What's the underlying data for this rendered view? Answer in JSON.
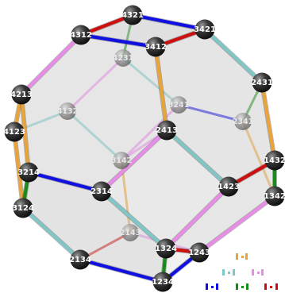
{
  "colors": {
    "orange": "#e8a33a",
    "cyan": "#7fc6c6",
    "pink": "#e88ce8",
    "blue": "#1010e0",
    "green": "#1a8a1a",
    "red": "#cc1010",
    "face": "#d8d8d8",
    "node": "#262626",
    "node_back": "#8a8a8a"
  },
  "nodes": [
    {
      "id": "4321",
      "label": "4321",
      "layer": "front"
    },
    {
      "id": "4312",
      "label": "4312",
      "layer": "front"
    },
    {
      "id": "3421",
      "label": "3421",
      "layer": "front"
    },
    {
      "id": "3412",
      "label": "3412",
      "layer": "front"
    },
    {
      "id": "4231",
      "label": "4231",
      "layer": "back"
    },
    {
      "id": "2431",
      "label": "2431",
      "layer": "front"
    },
    {
      "id": "4213",
      "label": "4213",
      "layer": "front"
    },
    {
      "id": "3241",
      "label": "3241",
      "layer": "back"
    },
    {
      "id": "4132",
      "label": "4132",
      "layer": "back"
    },
    {
      "id": "2341",
      "label": "2341",
      "layer": "back"
    },
    {
      "id": "4123",
      "label": "4123",
      "layer": "front"
    },
    {
      "id": "2413",
      "label": "2413",
      "layer": "front"
    },
    {
      "id": "1432",
      "label": "1432",
      "layer": "front"
    },
    {
      "id": "3142",
      "label": "3142",
      "layer": "back"
    },
    {
      "id": "3214",
      "label": "3214",
      "layer": "front"
    },
    {
      "id": "2314",
      "label": "2314",
      "layer": "front"
    },
    {
      "id": "1423",
      "label": "1423",
      "layer": "front"
    },
    {
      "id": "1342",
      "label": "1342",
      "layer": "front"
    },
    {
      "id": "3124",
      "label": "3124",
      "layer": "front"
    },
    {
      "id": "2143",
      "label": "2143",
      "layer": "back"
    },
    {
      "id": "1324",
      "label": "1324",
      "layer": "front"
    },
    {
      "id": "1243",
      "label": "1243",
      "layer": "front"
    },
    {
      "id": "2134",
      "label": "2134",
      "layer": "front"
    },
    {
      "id": "1234",
      "label": "1234",
      "layer": "front"
    }
  ],
  "edges": [
    {
      "a": "4312",
      "b": "4321",
      "color": "red"
    },
    {
      "a": "4321",
      "b": "3421",
      "color": "blue"
    },
    {
      "a": "3421",
      "b": "3412",
      "color": "red"
    },
    {
      "a": "3412",
      "b": "4312",
      "color": "blue"
    },
    {
      "a": "4321",
      "b": "4231",
      "color": "green"
    },
    {
      "a": "3421",
      "b": "2431",
      "color": "cyan"
    },
    {
      "a": "3412",
      "b": "2413",
      "color": "orange"
    },
    {
      "a": "4312",
      "b": "4213",
      "color": "pink"
    },
    {
      "a": "4213",
      "b": "4123",
      "color": "orange"
    },
    {
      "a": "4213",
      "b": "3214",
      "color": "orange"
    },
    {
      "a": "4123",
      "b": "3124",
      "color": "orange"
    },
    {
      "a": "3214",
      "b": "3124",
      "color": "green"
    },
    {
      "a": "3214",
      "b": "2314",
      "color": "blue"
    },
    {
      "a": "3124",
      "b": "2134",
      "color": "cyan"
    },
    {
      "a": "2314",
      "b": "2413",
      "color": "pink"
    },
    {
      "a": "2314",
      "b": "1324",
      "color": "cyan"
    },
    {
      "a": "2413",
      "b": "1423",
      "color": "cyan"
    },
    {
      "a": "1423",
      "b": "1432",
      "color": "red"
    },
    {
      "a": "1423",
      "b": "1324",
      "color": "pink"
    },
    {
      "a": "1432",
      "b": "1342",
      "color": "green"
    },
    {
      "a": "1432",
      "b": "2431",
      "color": "orange"
    },
    {
      "a": "2431",
      "b": "2341",
      "color": "green"
    },
    {
      "a": "1342",
      "b": "1243",
      "color": "pink"
    },
    {
      "a": "1324",
      "b": "1243",
      "color": "red"
    },
    {
      "a": "1324",
      "b": "1234",
      "color": "green"
    },
    {
      "a": "1243",
      "b": "1234",
      "color": "blue"
    },
    {
      "a": "2134",
      "b": "1234",
      "color": "blue"
    },
    {
      "a": "2134",
      "b": "2143",
      "color": "red"
    },
    {
      "a": "2143",
      "b": "1243",
      "color": "pink"
    },
    {
      "a": "4231",
      "b": "4132",
      "color": "pink"
    },
    {
      "a": "4231",
      "b": "3241",
      "color": "cyan"
    },
    {
      "a": "4132",
      "b": "4123",
      "color": "cyan"
    },
    {
      "a": "4132",
      "b": "3142",
      "color": "cyan"
    },
    {
      "a": "3241",
      "b": "2341",
      "color": "blue"
    },
    {
      "a": "3241",
      "b": "3142",
      "color": "pink"
    },
    {
      "a": "3142",
      "b": "2143",
      "color": "orange"
    },
    {
      "a": "2341",
      "b": "1342",
      "color": "orange"
    },
    {
      "a": "2413",
      "b": "3142",
      "color": "pink"
    }
  ],
  "legend": [
    {
      "color": "orange",
      "name": "orange-legend"
    },
    {
      "color": "cyan",
      "name": "cyan-legend"
    },
    {
      "color": "pink",
      "name": "pink-legend"
    },
    {
      "color": "blue",
      "name": "blue-legend"
    },
    {
      "color": "green",
      "name": "green-legend"
    },
    {
      "color": "red",
      "name": "red-legend"
    }
  ]
}
